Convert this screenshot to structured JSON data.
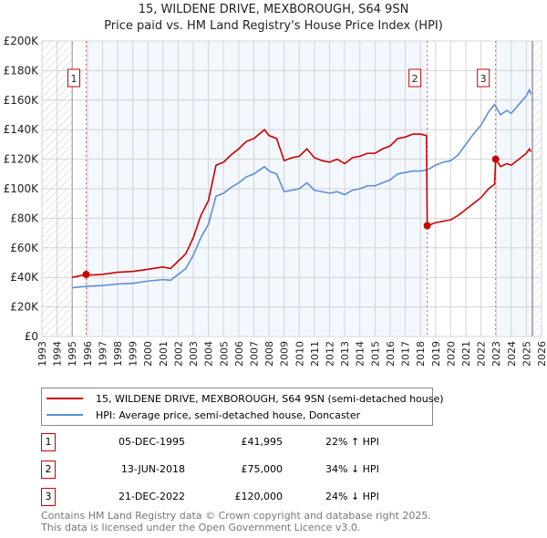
{
  "title": "15, WILDENE DRIVE, MEXBOROUGH, S64 9SN",
  "subtitle": "Price paid vs. HM Land Registry's House Price Index (HPI)",
  "chart_data": {
    "type": "line",
    "xlim": [
      1993,
      2026
    ],
    "ylim": [
      0,
      200000
    ],
    "x_ticks": [
      "1993",
      "1994",
      "1995",
      "1996",
      "1997",
      "1998",
      "1999",
      "2000",
      "2001",
      "2002",
      "2003",
      "2004",
      "2005",
      "2006",
      "2007",
      "2008",
      "2009",
      "2010",
      "2011",
      "2012",
      "2013",
      "2014",
      "2015",
      "2016",
      "2017",
      "2018",
      "2019",
      "2020",
      "2021",
      "2022",
      "2023",
      "2024",
      "2025",
      "2026"
    ],
    "y_ticks": [
      {
        "v": 0,
        "label": "£0"
      },
      {
        "v": 20000,
        "label": "£20K"
      },
      {
        "v": 40000,
        "label": "£40K"
      },
      {
        "v": 60000,
        "label": "£60K"
      },
      {
        "v": 80000,
        "label": "£80K"
      },
      {
        "v": 100000,
        "label": "£100K"
      },
      {
        "v": 120000,
        "label": "£120K"
      },
      {
        "v": 140000,
        "label": "£140K"
      },
      {
        "v": 160000,
        "label": "£160K"
      },
      {
        "v": 180000,
        "label": "£180K"
      },
      {
        "v": 200000,
        "label": "£200K"
      }
    ],
    "data_range": [
      1995,
      2025.4
    ],
    "series": [
      {
        "name": "15, WILDENE DRIVE, MEXBOROUGH, S64 9SN (semi-detached house)",
        "color": "#cc0000",
        "x": [
          1995,
          1995.92,
          1996,
          1997,
          1998,
          1999,
          2000,
          2001,
          2001.5,
          2002,
          2002.5,
          2003,
          2003.5,
          2004,
          2004.5,
          2005,
          2005.5,
          2006,
          2006.5,
          2007,
          2007.7,
          2008,
          2008.5,
          2009,
          2009.5,
          2010,
          2010.5,
          2011,
          2011.5,
          2012,
          2012.5,
          2013,
          2013.5,
          2014,
          2014.5,
          2015,
          2015.5,
          2016,
          2016.5,
          2017,
          2017.5,
          2018,
          2018.4,
          2018.45,
          2019,
          2019.5,
          2020,
          2020.5,
          2021,
          2021.5,
          2022,
          2022.5,
          2022.9,
          2022.97,
          2023.3,
          2023.7,
          2024,
          2024.5,
          2025,
          2025.2,
          2025.3
        ],
        "y": [
          40000,
          42000,
          41500,
          42000,
          43500,
          44000,
          45500,
          47000,
          46000,
          51000,
          56000,
          67000,
          82000,
          92000,
          116000,
          118000,
          123000,
          127000,
          132000,
          134000,
          140000,
          136000,
          134000,
          119000,
          121000,
          122000,
          127000,
          121000,
          119000,
          118000,
          120000,
          117000,
          121000,
          122000,
          124000,
          124000,
          127000,
          129000,
          134000,
          135000,
          137000,
          137000,
          136000,
          75000,
          77000,
          78000,
          79000,
          82000,
          86000,
          90000,
          94000,
          100000,
          103000,
          120000,
          115000,
          117000,
          116000,
          120000,
          124000,
          127000,
          125000
        ]
      },
      {
        "name": "HPI: Average price, semi-detached house, Doncaster",
        "color": "#5b8fd6",
        "x": [
          1995,
          1996,
          1997,
          1998,
          1999,
          2000,
          2001,
          2001.5,
          2002,
          2002.5,
          2003,
          2003.5,
          2004,
          2004.5,
          2005,
          2005.5,
          2006,
          2006.5,
          2007,
          2007.7,
          2008,
          2008.5,
          2009,
          2009.5,
          2010,
          2010.5,
          2011,
          2011.5,
          2012,
          2012.5,
          2013,
          2013.5,
          2014,
          2014.5,
          2015,
          2015.5,
          2016,
          2016.5,
          2017,
          2017.5,
          2018,
          2018.5,
          2019,
          2019.5,
          2020,
          2020.5,
          2021,
          2021.5,
          2022,
          2022.5,
          2022.9,
          2023.3,
          2023.7,
          2024,
          2024.5,
          2025,
          2025.2,
          2025.3
        ],
        "y": [
          33000,
          34000,
          34500,
          35500,
          36000,
          37500,
          38500,
          38000,
          42000,
          46000,
          55000,
          67000,
          76000,
          95000,
          97000,
          101000,
          104000,
          108000,
          110000,
          115000,
          112000,
          110000,
          98000,
          99000,
          100000,
          104000,
          99000,
          98000,
          97000,
          98000,
          96000,
          99000,
          100000,
          102000,
          102000,
          104000,
          106000,
          110000,
          111000,
          112000,
          112000,
          113000,
          116000,
          118000,
          119000,
          123000,
          130000,
          137000,
          143000,
          152000,
          157000,
          150000,
          153000,
          151000,
          157000,
          163000,
          167000,
          164000
        ]
      }
    ],
    "sales": [
      {
        "label": "1",
        "x": 1995.92,
        "y": 41995
      },
      {
        "label": "2",
        "x": 2018.45,
        "y": 75000
      },
      {
        "label": "3",
        "x": 2022.97,
        "y": 120000
      }
    ]
  },
  "legend": {
    "red": "15, WILDENE DRIVE, MEXBOROUGH, S64 9SN (semi-detached house)",
    "blue": "HPI: Average price, semi-detached house, Doncaster"
  },
  "rows": [
    {
      "num": "1",
      "date": "05-DEC-1995",
      "price": "£41,995",
      "hpi": "22% ↑ HPI"
    },
    {
      "num": "2",
      "date": "13-JUN-2018",
      "price": "£75,000",
      "hpi": "34% ↓ HPI"
    },
    {
      "num": "3",
      "date": "21-DEC-2022",
      "price": "£120,000",
      "hpi": "24% ↓ HPI"
    }
  ],
  "footer": {
    "line1": "Contains HM Land Registry data © Crown copyright and database right 2025.",
    "line2": "This data is licensed under the Open Government Licence v3.0."
  }
}
